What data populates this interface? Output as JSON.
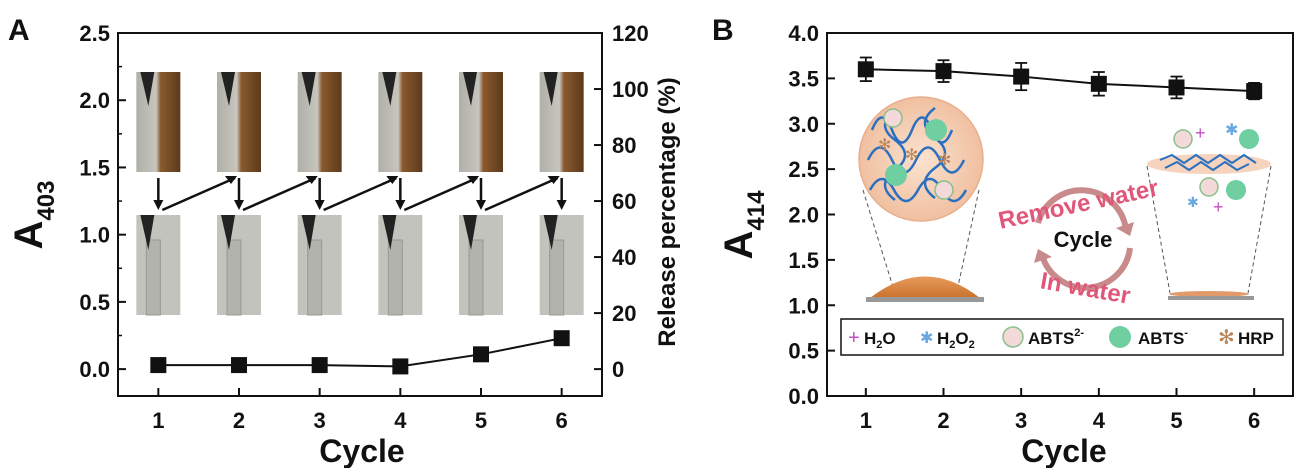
{
  "chart_data": [
    {
      "panel": "A",
      "type": "scatter",
      "xlabel": "Cycle",
      "ylabel_main": "A",
      "ylabel_sub": "403",
      "y2label": "Release percentage (%)",
      "x": [
        1,
        2,
        3,
        4,
        5,
        6
      ],
      "y": [
        0.03,
        0.03,
        0.03,
        0.02,
        0.11,
        0.23
      ],
      "xlim": [
        0.5,
        6.5
      ],
      "ylim": [
        -0.2,
        2.5
      ],
      "y2lim": [
        -9.6,
        120
      ],
      "xticks": [
        "1",
        "2",
        "3",
        "4",
        "5",
        "6"
      ],
      "yticks": [
        "0.0",
        "0.5",
        "1.0",
        "1.5",
        "2.0",
        "2.5"
      ],
      "y2ticks": [
        "0",
        "20",
        "40",
        "60",
        "80",
        "100",
        "120"
      ]
    },
    {
      "panel": "B",
      "type": "line",
      "xlabel": "Cycle",
      "ylabel_main": "A",
      "ylabel_sub": "414",
      "x": [
        1,
        2,
        3,
        4,
        5,
        6
      ],
      "y": [
        3.6,
        3.58,
        3.52,
        3.44,
        3.4,
        3.36
      ],
      "yerr": [
        0.13,
        0.12,
        0.15,
        0.13,
        0.12,
        0.09
      ],
      "xlim": [
        0.5,
        6.5
      ],
      "ylim": [
        0,
        4.0
      ],
      "xticks": [
        "1",
        "2",
        "3",
        "4",
        "5",
        "6"
      ],
      "yticks": [
        "0.0",
        "0.5",
        "1.0",
        "1.5",
        "2.0",
        "2.5",
        "3.0",
        "3.5",
        "4.0"
      ]
    }
  ],
  "schematic": {
    "cycle_label": "Cycle",
    "remove_water_label": "Remove water",
    "in_water_label": "In water"
  },
  "legend_b": {
    "items": [
      {
        "main": "H",
        "sub": "2",
        "tail": "O",
        "sup": ""
      },
      {
        "main": "H",
        "sub": "2",
        "tail": "O",
        "sub2": "2",
        "sup": ""
      },
      {
        "main": "ABTS",
        "sup": "2-"
      },
      {
        "main": "ABTS",
        "sup": "-"
      },
      {
        "main": "HRP",
        "sup": ""
      }
    ],
    "colors": {
      "h2o": "#c050c0",
      "h2o2": "#6aa8e0",
      "abts2": "#f3d9d9",
      "abts": "#6fcfa0",
      "hrp": "#b8865a"
    }
  },
  "panel_letters": [
    "A",
    "B"
  ]
}
